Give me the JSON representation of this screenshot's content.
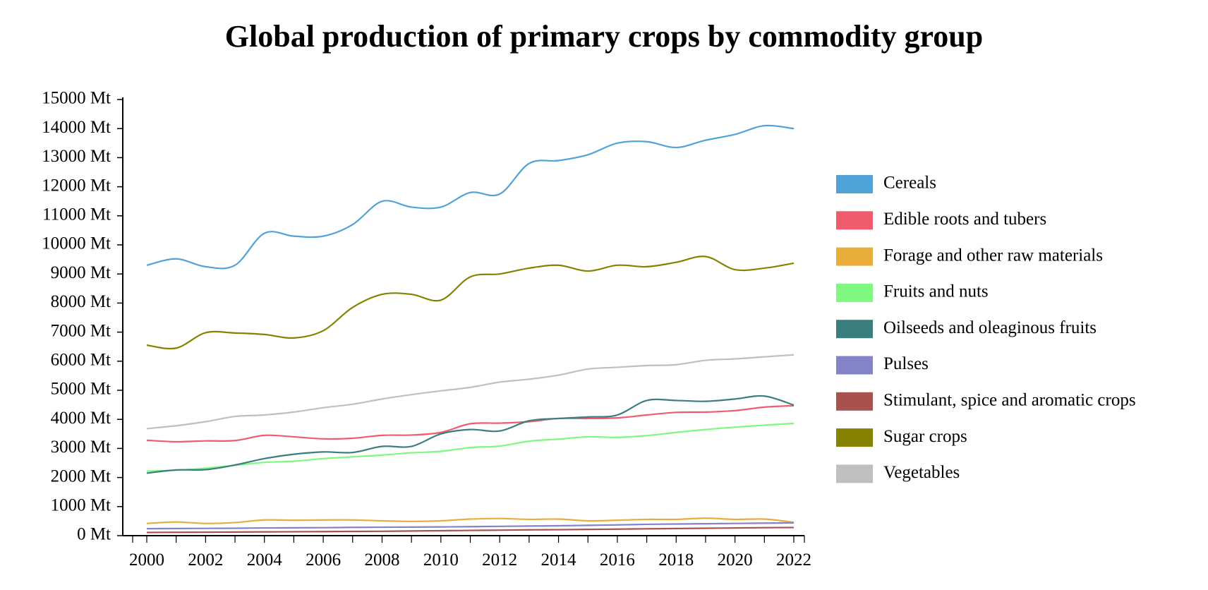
{
  "chart_data": {
    "type": "line",
    "title": "Global production of primary crops by commodity group",
    "xlabel": "",
    "ylabel": "",
    "xlim": [
      2000,
      2022
    ],
    "ylim": [
      0,
      15000
    ],
    "grid": false,
    "legend_position": "right",
    "x": [
      2000,
      2001,
      2002,
      2003,
      2004,
      2005,
      2006,
      2007,
      2008,
      2009,
      2010,
      2011,
      2012,
      2013,
      2014,
      2015,
      2016,
      2017,
      2018,
      2019,
      2020,
      2021,
      2022
    ],
    "x_ticks": [
      "2000",
      "2002",
      "2004",
      "2006",
      "2008",
      "2010",
      "2012",
      "2014",
      "2016",
      "2018",
      "2020",
      "2022"
    ],
    "y_ticks": [
      "0 Mt",
      "1000 Mt",
      "2000 Mt",
      "3000 Mt",
      "4000 Mt",
      "5000 Mt",
      "6000 Mt",
      "7000 Mt",
      "8000 Mt",
      "9000 Mt",
      "10000 Mt",
      "11000 Mt",
      "12000 Mt",
      "13000 Mt",
      "14000 Mt",
      "15000 Mt"
    ],
    "series": [
      {
        "name": "Cereals",
        "color": "#4fa3d8",
        "values": [
          9300,
          9520,
          9250,
          9300,
          10400,
          10300,
          10300,
          10700,
          11500,
          11300,
          11300,
          11800,
          11750,
          12800,
          12900,
          13100,
          13500,
          13550,
          13350,
          13600,
          13800,
          14100,
          14000
        ]
      },
      {
        "name": "Edible roots and tubers",
        "color": "#f05c6e",
        "values": [
          3280,
          3230,
          3260,
          3270,
          3450,
          3400,
          3330,
          3350,
          3450,
          3460,
          3550,
          3850,
          3870,
          3920,
          4030,
          4030,
          4050,
          4150,
          4240,
          4250,
          4300,
          4420,
          4470
        ]
      },
      {
        "name": "Forage and other raw materials",
        "color": "#e8ad3a",
        "values": [
          420,
          470,
          420,
          450,
          540,
          530,
          540,
          540,
          510,
          490,
          510,
          570,
          590,
          560,
          570,
          510,
          530,
          560,
          560,
          600,
          560,
          570,
          460
        ]
      },
      {
        "name": "Fruits and nuts",
        "color": "#7ff87f",
        "values": [
          2220,
          2250,
          2320,
          2420,
          2520,
          2560,
          2650,
          2710,
          2770,
          2850,
          2900,
          3030,
          3080,
          3250,
          3320,
          3400,
          3380,
          3440,
          3550,
          3650,
          3730,
          3800,
          3860
        ]
      },
      {
        "name": "Oilseeds and oleaginous fruits",
        "color": "#3b7e7e",
        "values": [
          2150,
          2260,
          2270,
          2430,
          2650,
          2800,
          2880,
          2860,
          3070,
          3070,
          3500,
          3650,
          3600,
          3950,
          4030,
          4080,
          4150,
          4650,
          4650,
          4620,
          4700,
          4800,
          4490
        ]
      },
      {
        "name": "Pulses",
        "color": "#8383c8",
        "values": [
          240,
          245,
          250,
          255,
          265,
          270,
          275,
          285,
          290,
          295,
          300,
          310,
          320,
          330,
          340,
          355,
          370,
          390,
          400,
          410,
          420,
          430,
          440
        ]
      },
      {
        "name": "Stimulant, spice and aromatic crops",
        "color": "#a8524f",
        "values": [
          110,
          115,
          120,
          125,
          130,
          135,
          140,
          145,
          150,
          160,
          170,
          180,
          190,
          200,
          205,
          215,
          225,
          235,
          245,
          255,
          265,
          275,
          280
        ]
      },
      {
        "name": "Sugar crops",
        "color": "#848200",
        "values": [
          6550,
          6450,
          6980,
          6970,
          6920,
          6800,
          7050,
          7850,
          8300,
          8300,
          8100,
          8900,
          9000,
          9200,
          9300,
          9100,
          9300,
          9250,
          9400,
          9600,
          9150,
          9200,
          9370
        ]
      },
      {
        "name": "Vegetables",
        "color": "#bfbfbf",
        "values": [
          3680,
          3780,
          3920,
          4100,
          4150,
          4250,
          4400,
          4520,
          4700,
          4850,
          4980,
          5100,
          5280,
          5380,
          5520,
          5730,
          5790,
          5850,
          5880,
          6030,
          6080,
          6150,
          6220
        ]
      }
    ]
  }
}
